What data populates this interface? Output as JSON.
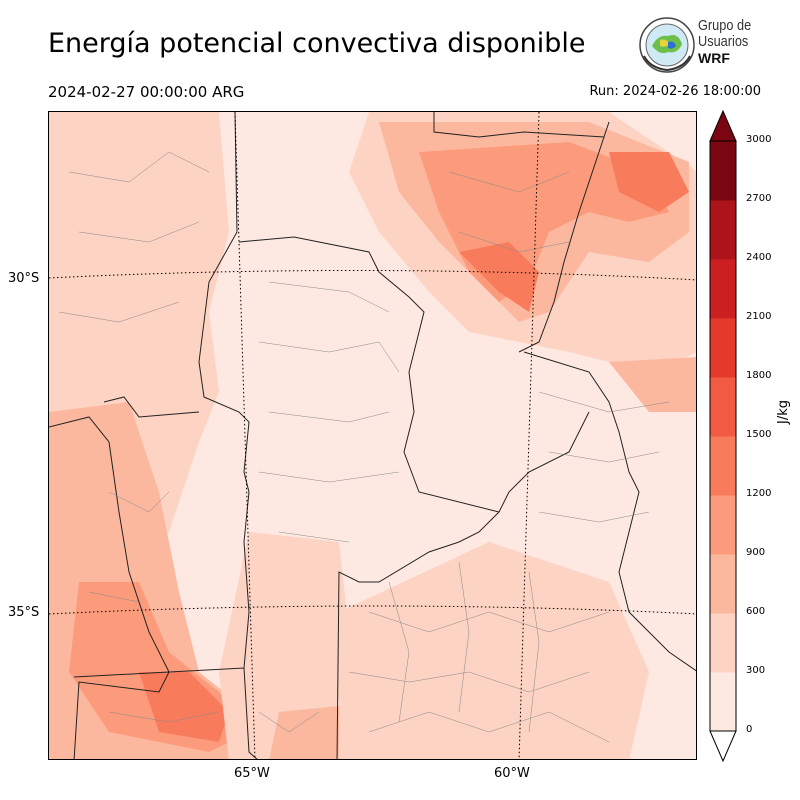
{
  "header": {
    "title": "Energía potencial convectiva disponible",
    "valid_time": "2024-02-27 00:00:00 ARG",
    "run": "Run: 2024-02-26 18:00:00"
  },
  "logo": {
    "line1": "Grupo de",
    "line2": "Usuarios",
    "line3": "WRF"
  },
  "map": {
    "lat_labels": [
      "30°S",
      "35°S"
    ],
    "lon_labels": [
      "65°W",
      "60°W"
    ]
  },
  "colorbar": {
    "unit": "J/kg",
    "ticks": [
      "0",
      "300",
      "600",
      "900",
      "1200",
      "1500",
      "1800",
      "2100",
      "2400",
      "2700",
      "3000"
    ],
    "colors": [
      "#fee9e2",
      "#fdd3c3",
      "#fcb89f",
      "#fb9b7b",
      "#f87c5c",
      "#f25a41",
      "#e5392c",
      "#cc1f22",
      "#ac1419",
      "#7a0612"
    ]
  }
}
